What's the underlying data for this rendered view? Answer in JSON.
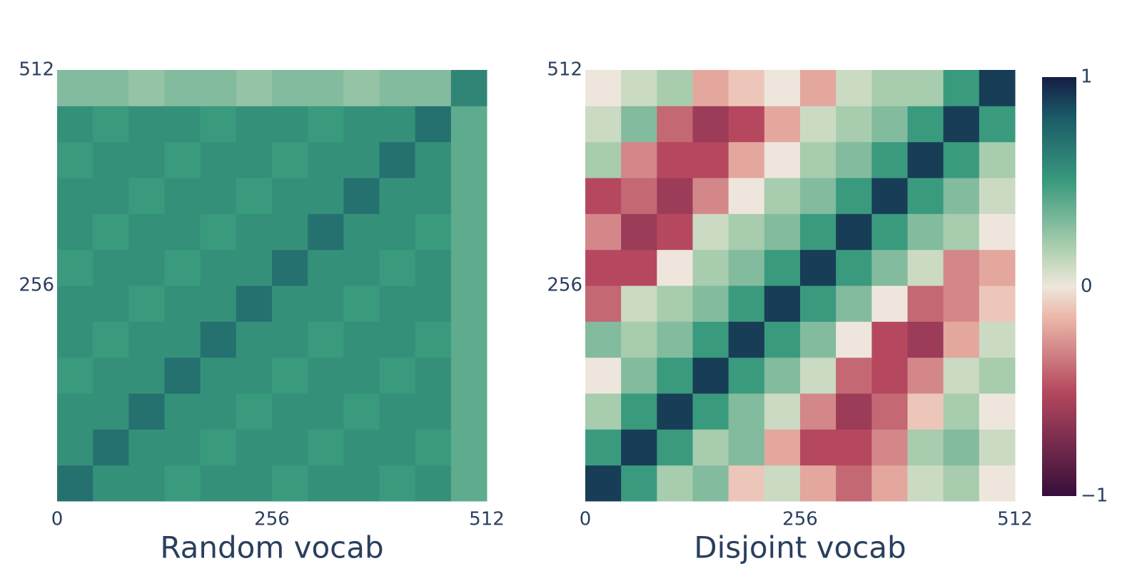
{
  "chart_data": [
    {
      "type": "heatmap",
      "title": "Random vocab",
      "x": [
        21.3,
        64,
        106.7,
        149.3,
        192,
        234.7,
        277.3,
        320,
        362.7,
        405.3,
        448,
        490.7
      ],
      "y": [
        21.3,
        64,
        106.7,
        149.3,
        192,
        234.7,
        277.3,
        320,
        362.7,
        405.3,
        448,
        490.7
      ],
      "z": [
        [
          0.7,
          0.55,
          0.55,
          0.5,
          0.55,
          0.55,
          0.5,
          0.55,
          0.55,
          0.5,
          0.55,
          0.4
        ],
        [
          0.55,
          0.7,
          0.55,
          0.55,
          0.5,
          0.55,
          0.55,
          0.5,
          0.55,
          0.55,
          0.5,
          0.4
        ],
        [
          0.55,
          0.55,
          0.7,
          0.55,
          0.55,
          0.5,
          0.55,
          0.55,
          0.5,
          0.55,
          0.55,
          0.4
        ],
        [
          0.5,
          0.55,
          0.55,
          0.7,
          0.55,
          0.55,
          0.5,
          0.55,
          0.55,
          0.5,
          0.55,
          0.4
        ],
        [
          0.55,
          0.5,
          0.55,
          0.55,
          0.7,
          0.55,
          0.55,
          0.5,
          0.55,
          0.55,
          0.5,
          0.4
        ],
        [
          0.55,
          0.55,
          0.5,
          0.55,
          0.55,
          0.7,
          0.55,
          0.55,
          0.5,
          0.55,
          0.55,
          0.4
        ],
        [
          0.5,
          0.55,
          0.55,
          0.5,
          0.55,
          0.55,
          0.7,
          0.55,
          0.55,
          0.5,
          0.55,
          0.4
        ],
        [
          0.55,
          0.5,
          0.55,
          0.55,
          0.5,
          0.55,
          0.55,
          0.7,
          0.55,
          0.55,
          0.5,
          0.4
        ],
        [
          0.55,
          0.55,
          0.5,
          0.55,
          0.55,
          0.5,
          0.55,
          0.55,
          0.7,
          0.55,
          0.55,
          0.4
        ],
        [
          0.5,
          0.55,
          0.55,
          0.5,
          0.55,
          0.55,
          0.5,
          0.55,
          0.55,
          0.7,
          0.55,
          0.4
        ],
        [
          0.55,
          0.5,
          0.55,
          0.55,
          0.5,
          0.55,
          0.55,
          0.5,
          0.55,
          0.55,
          0.7,
          0.4
        ],
        [
          0.3,
          0.3,
          0.25,
          0.3,
          0.3,
          0.25,
          0.3,
          0.3,
          0.25,
          0.3,
          0.3,
          0.6
        ]
      ],
      "xlim": [
        0,
        512
      ],
      "ylim": [
        0,
        512
      ],
      "xticks": [
        0,
        256,
        512
      ],
      "yticks": [
        256,
        512
      ]
    },
    {
      "type": "heatmap",
      "title": "Disjoint vocab",
      "x": [
        21.3,
        64,
        106.7,
        149.3,
        192,
        234.7,
        277.3,
        320,
        362.7,
        405.3,
        448,
        490.7
      ],
      "y": [
        21.3,
        64,
        106.7,
        149.3,
        192,
        234.7,
        277.3,
        320,
        362.7,
        405.3,
        448,
        490.7
      ],
      "z": [
        [
          0.9,
          0.5,
          0.2,
          0.3,
          -0.1,
          0.1,
          -0.2,
          -0.4,
          -0.2,
          0.1,
          0.2,
          0
        ],
        [
          0.5,
          0.9,
          0.5,
          0.2,
          0.3,
          -0.2,
          -0.5,
          -0.5,
          -0.3,
          0.2,
          0.3,
          0.1
        ],
        [
          0.2,
          0.5,
          0.9,
          0.5,
          0.3,
          0.1,
          -0.3,
          -0.6,
          -0.4,
          -0.1,
          0.2,
          0
        ],
        [
          0,
          0.3,
          0.5,
          0.9,
          0.5,
          0.3,
          0.1,
          -0.4,
          -0.5,
          -0.3,
          0.1,
          0.2
        ],
        [
          0.3,
          0.2,
          0.3,
          0.5,
          0.9,
          0.5,
          0.3,
          0,
          -0.5,
          -0.6,
          -0.2,
          0.1
        ],
        [
          -0.4,
          0.1,
          0.2,
          0.3,
          0.5,
          0.9,
          0.5,
          0.3,
          0,
          -0.4,
          -0.3,
          -0.1
        ],
        [
          -0.5,
          -0.5,
          0,
          0.2,
          0.3,
          0.5,
          0.9,
          0.5,
          0.3,
          0.1,
          -0.3,
          -0.2
        ],
        [
          -0.3,
          -0.6,
          -0.5,
          0.1,
          0.2,
          0.3,
          0.5,
          0.9,
          0.5,
          0.3,
          0.2,
          0
        ],
        [
          -0.5,
          -0.4,
          -0.6,
          -0.3,
          0,
          0.2,
          0.3,
          0.5,
          0.9,
          0.5,
          0.3,
          0.1
        ],
        [
          0.2,
          -0.3,
          -0.5,
          -0.5,
          -0.2,
          0,
          0.2,
          0.3,
          0.5,
          0.9,
          0.5,
          0.2
        ],
        [
          0.1,
          0.3,
          -0.4,
          -0.6,
          -0.5,
          -0.2,
          0.1,
          0.2,
          0.3,
          0.5,
          0.9,
          0.5
        ],
        [
          0,
          0.1,
          0.2,
          -0.2,
          -0.1,
          0,
          -0.2,
          0.1,
          0.2,
          0.2,
          0.5,
          0.9
        ]
      ],
      "xlim": [
        0,
        512
      ],
      "ylim": [
        0,
        512
      ],
      "xticks": [
        0,
        256,
        512
      ],
      "yticks": [
        256,
        512
      ],
      "colorbar": {
        "zlim": [
          -1,
          1
        ],
        "ticks": [
          {
            "value": -1,
            "label": "−1"
          },
          0,
          1
        ]
      }
    }
  ],
  "colorscale": [
    [
      -1,
      "#360e3a"
    ],
    [
      -0.5,
      "#b5485f"
    ],
    [
      -0.15,
      "#ebb7a8"
    ],
    [
      0,
      "#eee6dc"
    ],
    [
      0.15,
      "#b9d4b6"
    ],
    [
      0.5,
      "#3a9a7e"
    ],
    [
      0.8,
      "#1b5c68"
    ],
    [
      1,
      "#151d44"
    ]
  ]
}
